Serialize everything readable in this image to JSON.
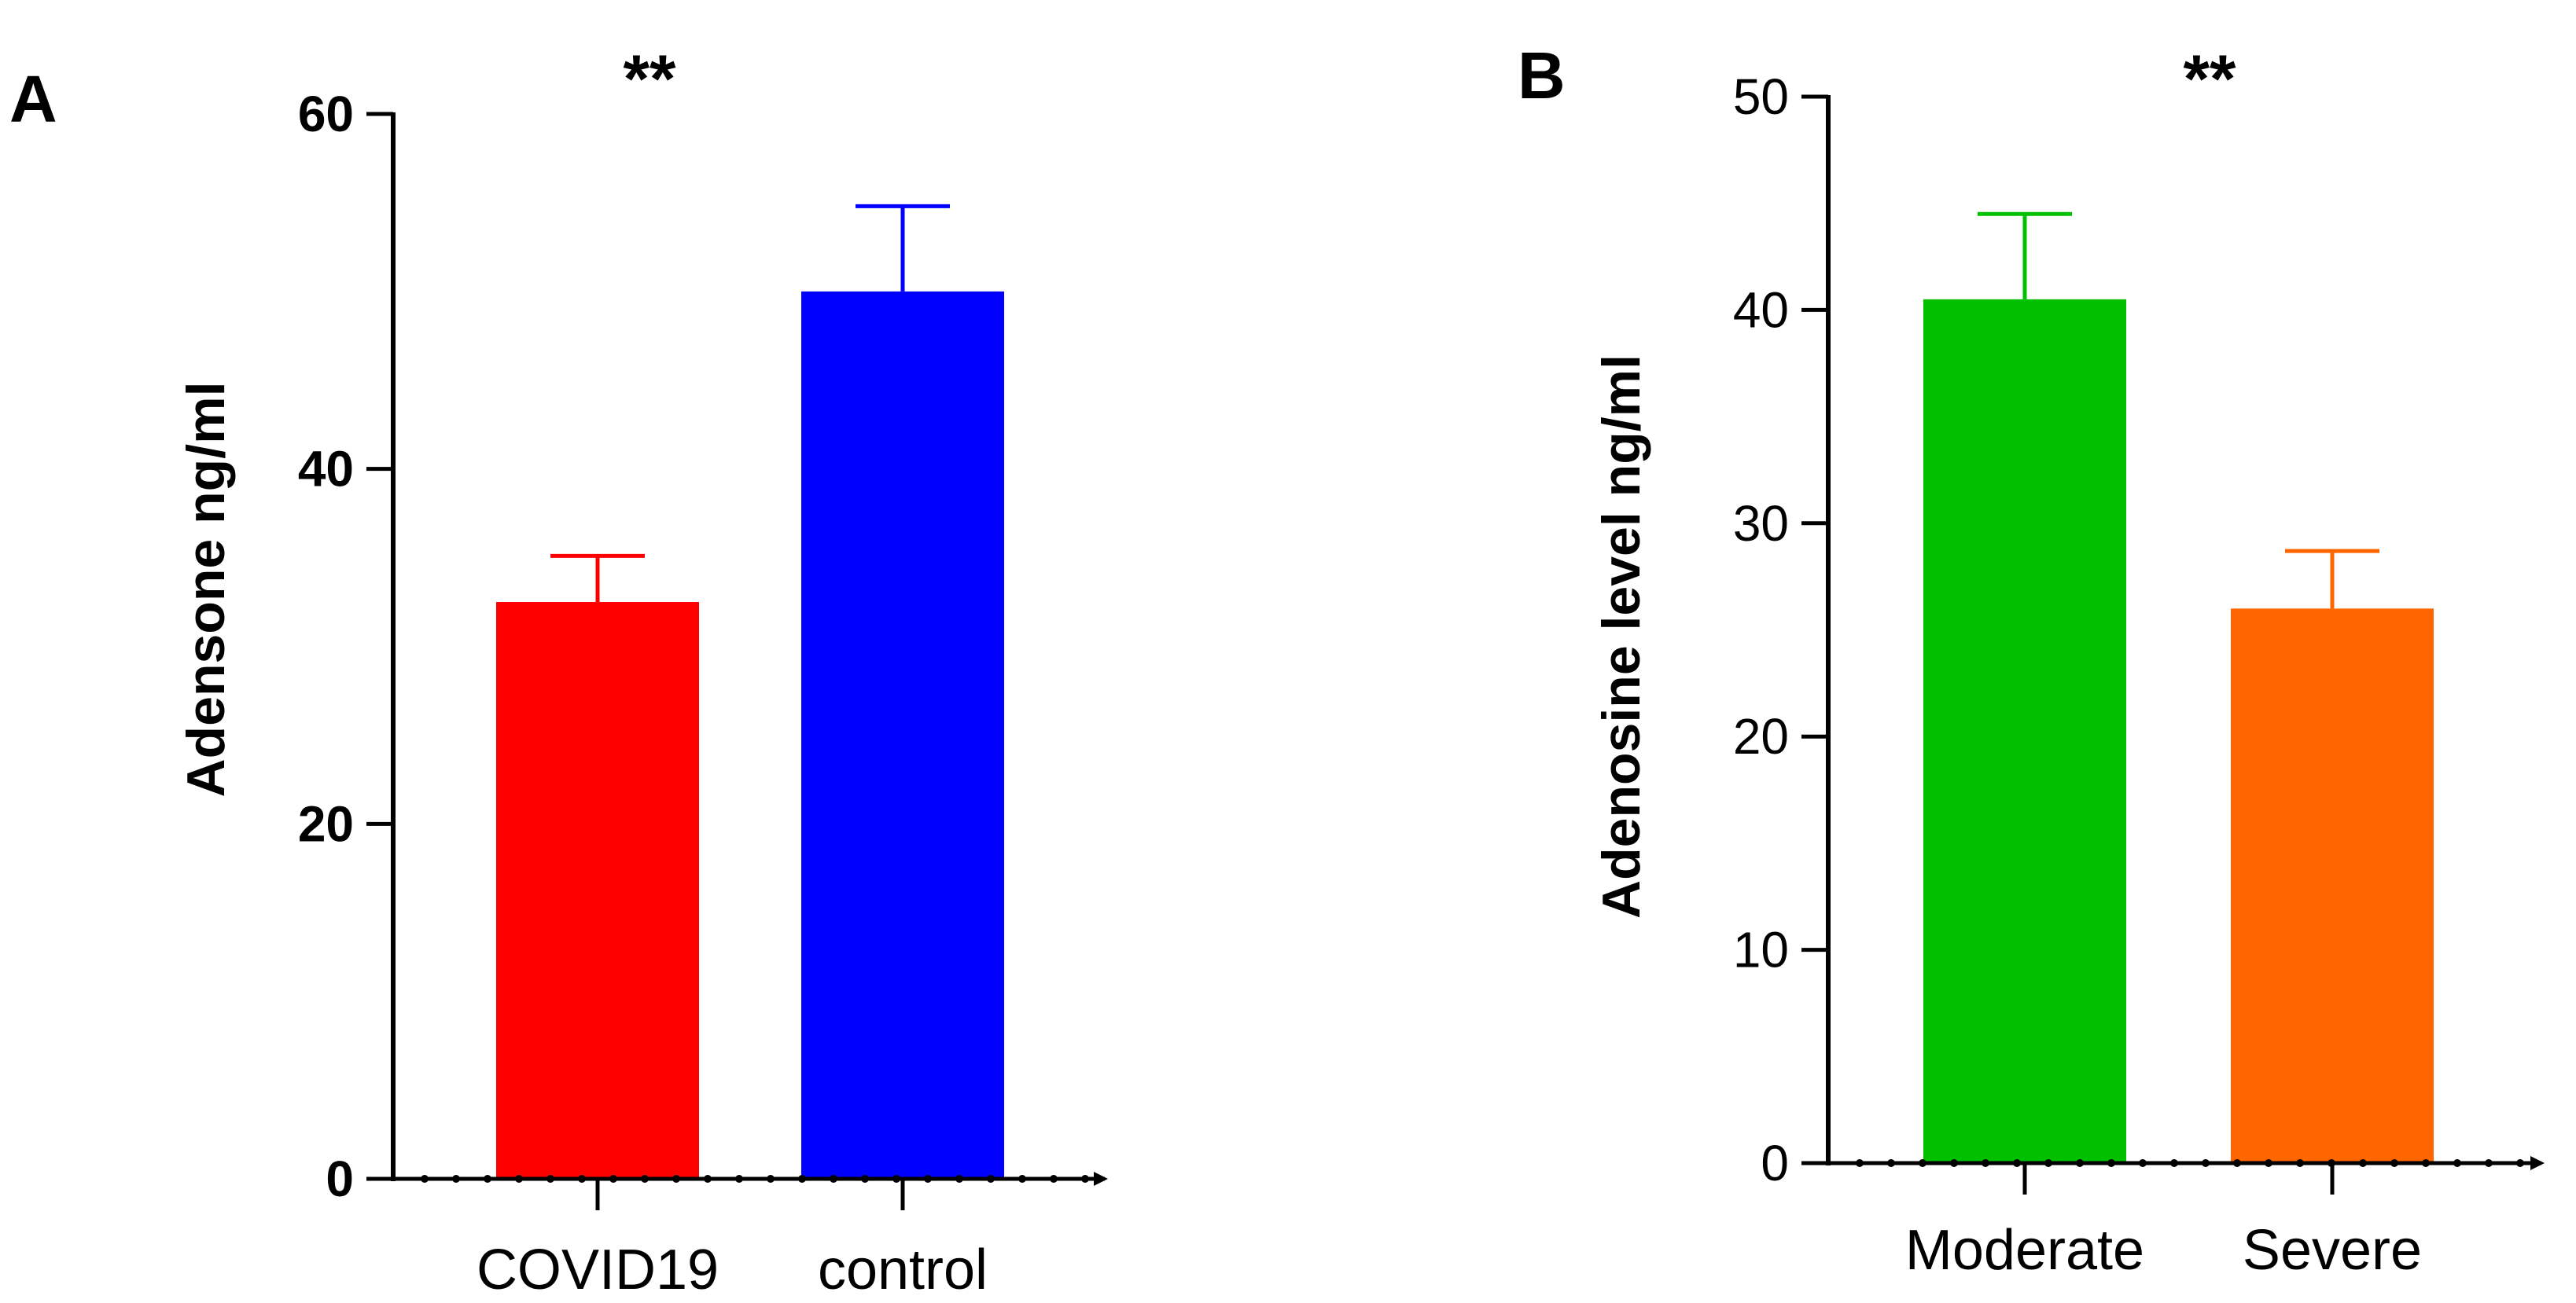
{
  "chart_data": [
    {
      "type": "bar",
      "panel_label": "A",
      "title": "",
      "xlabel": "",
      "ylabel": "Adensone ng/ml",
      "ylim": [
        0,
        60
      ],
      "yticks": [
        "0",
        "20",
        "40",
        "60"
      ],
      "categories": [
        "COVID19",
        "control"
      ],
      "values": [
        32.5,
        50.0
      ],
      "errors": [
        2.6,
        4.8
      ],
      "colors": [
        "#ff0000",
        "#0000ff"
      ],
      "significance": "**",
      "grid": false
    },
    {
      "type": "bar",
      "panel_label": "B",
      "title": "",
      "xlabel": "",
      "ylabel": "Adenosine level ng/ml",
      "ylim": [
        0,
        50
      ],
      "yticks": [
        "0",
        "10",
        "20",
        "30",
        "40",
        "50"
      ],
      "categories": [
        "Moderate",
        "Severe"
      ],
      "values": [
        40.5,
        26.0
      ],
      "errors": [
        4.0,
        2.7
      ],
      "colors": [
        "#00c000",
        "#ff6600"
      ],
      "significance": "**",
      "grid": false
    }
  ]
}
